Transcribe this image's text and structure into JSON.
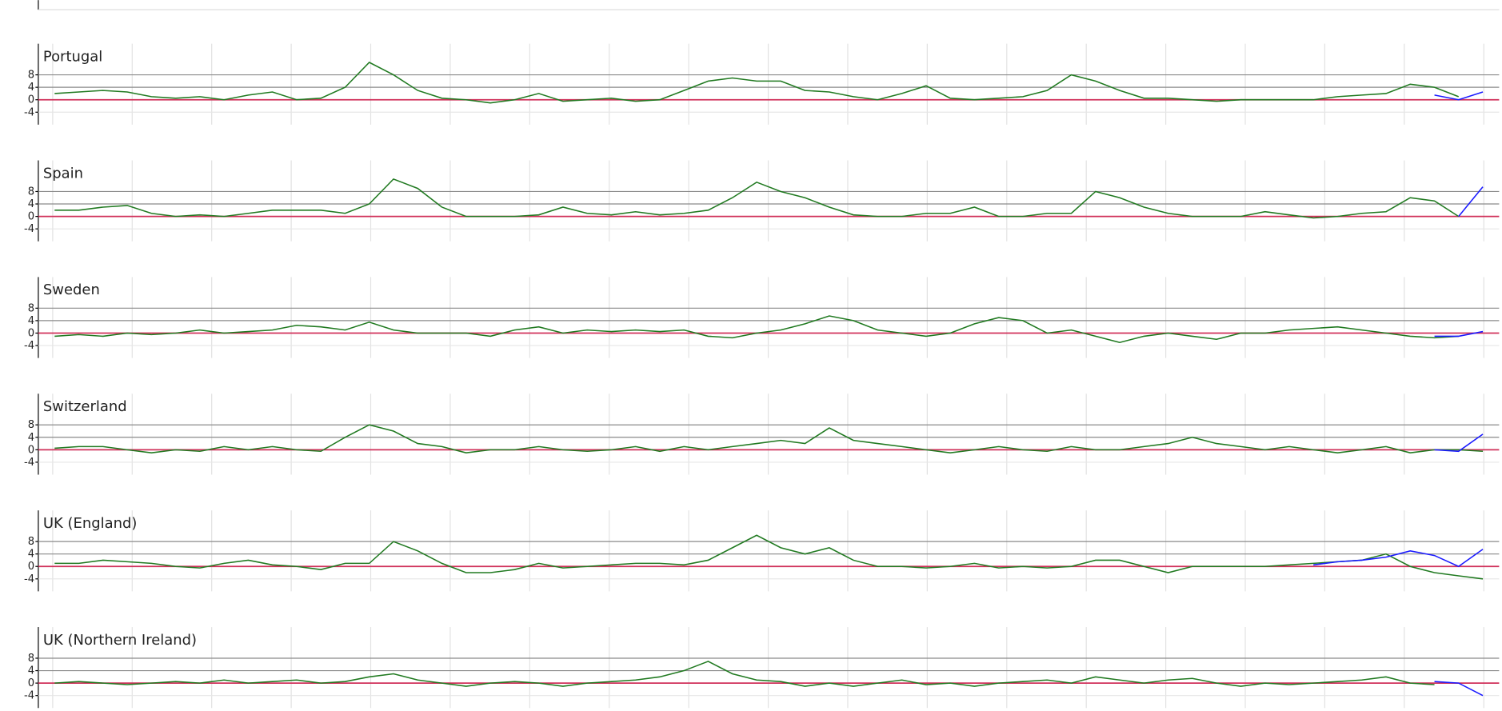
{
  "chart_data": [
    {
      "type": "line",
      "title": "Portugal",
      "ylim": [
        -8,
        18
      ],
      "yticks": [
        8,
        4,
        0,
        -4
      ],
      "series": [
        {
          "color": "#217a21",
          "values": [
            2,
            2.5,
            3,
            2.5,
            1,
            0.5,
            1,
            0,
            1.5,
            2.5,
            0,
            0.5,
            4,
            12,
            8,
            3,
            0.5,
            0,
            -1,
            0,
            2,
            -0.5,
            0,
            0.5,
            -0.5,
            0,
            3,
            6,
            7,
            6,
            6,
            3,
            2.5,
            1,
            0,
            2,
            4.5,
            0.5,
            0,
            0.5,
            1,
            3,
            8,
            6,
            3,
            0.5,
            0.5,
            0,
            -0.5,
            0,
            0,
            0,
            0,
            1,
            1.5,
            2,
            5,
            4,
            1,
            null
          ]
        },
        {
          "color": "#1a1aff",
          "values": [
            null,
            null,
            null,
            null,
            null,
            null,
            null,
            null,
            null,
            null,
            null,
            null,
            null,
            null,
            null,
            null,
            null,
            null,
            null,
            null,
            null,
            null,
            null,
            null,
            null,
            null,
            null,
            null,
            null,
            null,
            null,
            null,
            null,
            null,
            null,
            null,
            null,
            null,
            null,
            null,
            null,
            null,
            null,
            null,
            null,
            null,
            null,
            null,
            null,
            null,
            null,
            null,
            null,
            null,
            null,
            null,
            null,
            1.5,
            0,
            2.5
          ]
        }
      ]
    },
    {
      "type": "line",
      "title": "Spain",
      "ylim": [
        -8,
        18
      ],
      "yticks": [
        8,
        4,
        0,
        -4
      ],
      "series": [
        {
          "color": "#217a21",
          "values": [
            2,
            2,
            3,
            3.5,
            1,
            0,
            0.5,
            0,
            1,
            2,
            2,
            2,
            1,
            4,
            12,
            9,
            3,
            0,
            0,
            0,
            0.5,
            3,
            1,
            0.5,
            1.5,
            0.5,
            1,
            2,
            6,
            11,
            8,
            6,
            3,
            0.5,
            0,
            0,
            1,
            1,
            3,
            0,
            0,
            1,
            1,
            8,
            6,
            3,
            1,
            0,
            0,
            0,
            1.5,
            0.5,
            -0.5,
            0,
            1,
            1.5,
            6,
            5,
            0,
            null
          ]
        },
        {
          "color": "#1a1aff",
          "values": [
            null,
            null,
            null,
            null,
            null,
            null,
            null,
            null,
            null,
            null,
            null,
            null,
            null,
            null,
            null,
            null,
            null,
            null,
            null,
            null,
            null,
            null,
            null,
            null,
            null,
            null,
            null,
            null,
            null,
            null,
            null,
            null,
            null,
            null,
            null,
            null,
            null,
            null,
            null,
            null,
            null,
            null,
            null,
            null,
            null,
            null,
            null,
            null,
            null,
            null,
            null,
            null,
            null,
            null,
            null,
            null,
            null,
            null,
            0,
            9.5
          ]
        }
      ]
    },
    {
      "type": "line",
      "title": "Sweden",
      "ylim": [
        -8,
        18
      ],
      "yticks": [
        8,
        4,
        0,
        -4
      ],
      "series": [
        {
          "color": "#217a21",
          "values": [
            -1,
            -0.5,
            -1,
            0,
            -0.5,
            0,
            1,
            0,
            0.5,
            1,
            2.5,
            2,
            1,
            3.5,
            1,
            0,
            0,
            0,
            -1,
            1,
            2,
            0,
            1,
            0.5,
            1,
            0.5,
            1,
            -1,
            -1.5,
            0,
            1,
            3,
            5.5,
            4,
            1,
            0,
            -1,
            0,
            3,
            5,
            4,
            0,
            1,
            -1,
            -3,
            -1,
            0,
            -1,
            -2,
            0,
            0,
            1,
            1.5,
            2,
            1,
            0,
            -1,
            -1.5,
            -1,
            null
          ]
        },
        {
          "color": "#1a1aff",
          "values": [
            null,
            null,
            null,
            null,
            null,
            null,
            null,
            null,
            null,
            null,
            null,
            null,
            null,
            null,
            null,
            null,
            null,
            null,
            null,
            null,
            null,
            null,
            null,
            null,
            null,
            null,
            null,
            null,
            null,
            null,
            null,
            null,
            null,
            null,
            null,
            null,
            null,
            null,
            null,
            null,
            null,
            null,
            null,
            null,
            null,
            null,
            null,
            null,
            null,
            null,
            null,
            null,
            null,
            null,
            null,
            null,
            null,
            -1,
            -1,
            0.5
          ]
        }
      ]
    },
    {
      "type": "line",
      "title": "Switzerland",
      "ylim": [
        -8,
        18
      ],
      "yticks": [
        8,
        4,
        0,
        -4
      ],
      "series": [
        {
          "color": "#217a21",
          "values": [
            0.5,
            1,
            1,
            0,
            -1,
            0,
            -0.5,
            1,
            0,
            1,
            0,
            -0.5,
            4,
            8,
            6,
            2,
            1,
            -1,
            0,
            0,
            1,
            0,
            -0.5,
            0,
            1,
            -0.5,
            1,
            0,
            1,
            2,
            3,
            2,
            7,
            3,
            2,
            1,
            0,
            -1,
            0,
            1,
            0,
            -0.5,
            1,
            0,
            0,
            1,
            2,
            4,
            2,
            1,
            0,
            1,
            0,
            -1,
            0,
            1,
            -1,
            0,
            0,
            -0.5
          ]
        },
        {
          "color": "#1a1aff",
          "values": [
            null,
            null,
            null,
            null,
            null,
            null,
            null,
            null,
            null,
            null,
            null,
            null,
            null,
            null,
            null,
            null,
            null,
            null,
            null,
            null,
            null,
            null,
            null,
            null,
            null,
            null,
            null,
            null,
            null,
            null,
            null,
            null,
            null,
            null,
            null,
            null,
            null,
            null,
            null,
            null,
            null,
            null,
            null,
            null,
            null,
            null,
            null,
            null,
            null,
            null,
            null,
            null,
            null,
            null,
            null,
            null,
            null,
            0,
            -0.5,
            5
          ]
        }
      ]
    },
    {
      "type": "line",
      "title": "UK (England)",
      "ylim": [
        -8,
        18
      ],
      "yticks": [
        8,
        4,
        0,
        -4
      ],
      "series": [
        {
          "color": "#217a21",
          "values": [
            1,
            1,
            2,
            1.5,
            1,
            0,
            -0.5,
            1,
            2,
            0.5,
            0,
            -1,
            1,
            1,
            8,
            5,
            1,
            -2,
            -2,
            -1,
            1,
            -0.5,
            0,
            0.5,
            1,
            1,
            0.5,
            2,
            6,
            10,
            6,
            4,
            6,
            2,
            0,
            0,
            -0.5,
            0,
            1,
            -0.5,
            0,
            -0.5,
            0,
            2,
            2,
            0,
            -2,
            0,
            0,
            0,
            0,
            0.5,
            1,
            1.5,
            2,
            4,
            0,
            -2,
            -3,
            -4
          ]
        },
        {
          "color": "#1a1aff",
          "values": [
            null,
            null,
            null,
            null,
            null,
            null,
            null,
            null,
            null,
            null,
            null,
            null,
            null,
            null,
            null,
            null,
            null,
            null,
            null,
            null,
            null,
            null,
            null,
            null,
            null,
            null,
            null,
            null,
            null,
            null,
            null,
            null,
            null,
            null,
            null,
            null,
            null,
            null,
            null,
            null,
            null,
            null,
            null,
            null,
            null,
            null,
            null,
            null,
            null,
            null,
            null,
            null,
            0.5,
            1.5,
            2,
            3,
            5,
            3.5,
            0,
            5.5
          ]
        }
      ]
    },
    {
      "type": "line",
      "title": "UK (Northern Ireland)",
      "ylim": [
        -8,
        18
      ],
      "yticks": [
        8,
        4,
        0,
        -4
      ],
      "series": [
        {
          "color": "#217a21",
          "values": [
            0,
            0.5,
            0,
            -0.5,
            0,
            0.5,
            0,
            1,
            0,
            0.5,
            1,
            0,
            0.5,
            2,
            3,
            1,
            0,
            -1,
            0,
            0.5,
            0,
            -1,
            0,
            0.5,
            1,
            2,
            4,
            7,
            3,
            1,
            0.5,
            -1,
            0,
            -1,
            0,
            1,
            -0.5,
            0,
            -1,
            0,
            0.5,
            1,
            0,
            2,
            1,
            0,
            1,
            1.5,
            0,
            -1,
            0,
            -0.5,
            0,
            0.5,
            1,
            2,
            0,
            -0.5,
            null,
            null
          ]
        },
        {
          "color": "#1a1aff",
          "values": [
            null,
            null,
            null,
            null,
            null,
            null,
            null,
            null,
            null,
            null,
            null,
            null,
            null,
            null,
            null,
            null,
            null,
            null,
            null,
            null,
            null,
            null,
            null,
            null,
            null,
            null,
            null,
            null,
            null,
            null,
            null,
            null,
            null,
            null,
            null,
            null,
            null,
            null,
            null,
            null,
            null,
            null,
            null,
            null,
            null,
            null,
            null,
            null,
            null,
            null,
            null,
            null,
            null,
            null,
            null,
            null,
            null,
            0.5,
            0,
            -4
          ]
        }
      ]
    }
  ]
}
